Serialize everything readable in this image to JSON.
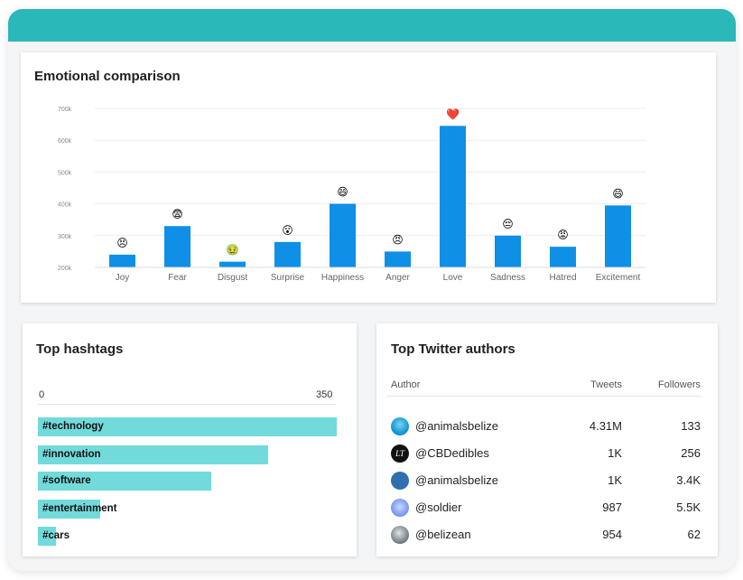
{
  "emotion_chart": {
    "title": "Emotional comparison",
    "chart_data": {
      "type": "bar",
      "categories": [
        "Joy",
        "Fear",
        "Disgust",
        "Surprise",
        "Happiness",
        "Anger",
        "Love",
        "Sadness",
        "Hatred",
        "Excitement"
      ],
      "values": [
        240000,
        330000,
        218000,
        280000,
        400000,
        250000,
        645000,
        300000,
        265000,
        395000
      ],
      "emojis": [
        "😣",
        "😨",
        "🤢",
        "😮",
        "😄",
        "😠",
        "❤️",
        "😔",
        "😡",
        "😄"
      ],
      "ytick_labels": [
        "200k",
        "300k",
        "400k",
        "500k",
        "600k",
        "700k"
      ],
      "ytick_values": [
        200000,
        300000,
        400000,
        500000,
        600000,
        700000
      ],
      "ylim": [
        200000,
        700000
      ],
      "bar_color": "#0f8fe6",
      "grid": true,
      "xlabel": "",
      "ylabel": ""
    }
  },
  "hashtags": {
    "title": "Top hashtags",
    "axis_min_label": "0",
    "axis_max_label": "350",
    "chart_data": {
      "type": "bar",
      "orientation": "horizontal",
      "categories": [
        "#technology",
        "#innovation",
        "#software",
        "#entertainment",
        "#cars"
      ],
      "values": [
        350,
        270,
        203,
        73,
        21
      ],
      "xlim": [
        0,
        350
      ],
      "bar_color": "#72dadb"
    }
  },
  "authors": {
    "title": "Top Twitter authors",
    "columns": {
      "author": "Author",
      "tweets": "Tweets",
      "followers": "Followers"
    },
    "rows": [
      {
        "name": "@animalsbelize",
        "tweets": "4.31M",
        "followers": "133",
        "avatar": "wave-avatar",
        "avatar_text": ""
      },
      {
        "name": "@CBDedibles",
        "tweets": "1K",
        "followers": "256",
        "avatar": "lt-logo-avatar",
        "avatar_text": "LT"
      },
      {
        "name": "@animalsbelize",
        "tweets": "1K",
        "followers": "3.4K",
        "avatar": "blue-circle-avatar",
        "avatar_text": ""
      },
      {
        "name": "@soldier",
        "tweets": "987",
        "followers": "5.5K",
        "avatar": "cartoon-avatar",
        "avatar_text": ""
      },
      {
        "name": "@belizean",
        "tweets": "954",
        "followers": "62",
        "avatar": "photo-avatar",
        "avatar_text": ""
      }
    ]
  },
  "colors": {
    "header": "#2ab8b9",
    "background": "#f4f5f7",
    "card": "#ffffff"
  }
}
